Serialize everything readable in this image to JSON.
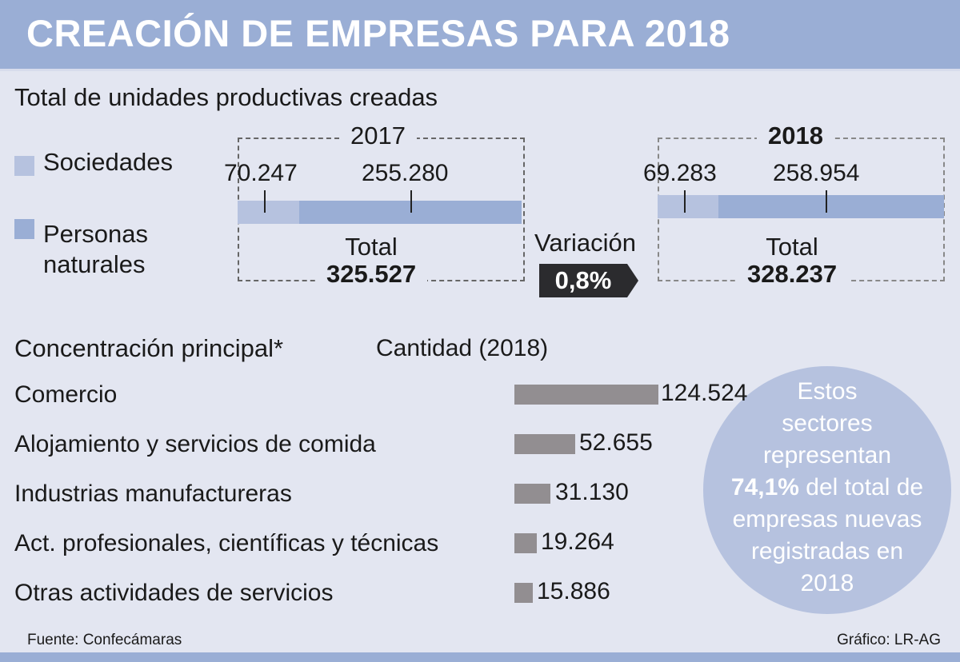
{
  "header": {
    "title": "CREACIÓN DE EMPRESAS PARA 2018"
  },
  "colors": {
    "header": "#9aaed5",
    "sociedades": "#b6c2df",
    "personas": "#9aaed5",
    "sector_bar": "#928e91",
    "badge": "#2b2b2e",
    "background": "#e3e6f1"
  },
  "section1": {
    "title": "Total de unidades productivas creadas",
    "legend": [
      {
        "label": "Sociedades",
        "color": "#b6c2df"
      },
      {
        "label_line1": "Personas",
        "label_line2": "naturales",
        "color": "#9aaed5"
      }
    ],
    "years": [
      {
        "year": "2017",
        "sociedades": "70.247",
        "personas": "255.280",
        "total_label": "Total",
        "total": "325.527"
      },
      {
        "year": "2018",
        "sociedades": "69.283",
        "personas": "258.954",
        "total_label": "Total",
        "total": "328.237"
      }
    ],
    "variation_label": "Variación",
    "variation_value": "0,8%"
  },
  "section2": {
    "title": "Concentración principal*",
    "subtitle": "Cantidad (2018)",
    "circle": {
      "line1": "Estos",
      "line2": "sectores",
      "line3": "representan",
      "highlight": "74,1%",
      "line4_rest": " del total de",
      "line5": "empresas nuevas",
      "line6": "registradas en",
      "line7": "2018"
    }
  },
  "footer": {
    "source": "Fuente: Confecámaras",
    "credit": "Gráfico: LR-AG"
  },
  "chart_data": [
    {
      "type": "bar",
      "orientation": "horizontal-stacked",
      "title": "Total de unidades productivas creadas",
      "categories": [
        "2017",
        "2018"
      ],
      "series": [
        {
          "name": "Sociedades",
          "values": [
            70247,
            69283
          ]
        },
        {
          "name": "Personas naturales",
          "values": [
            255280,
            258954
          ]
        }
      ],
      "totals": [
        325527,
        328237
      ],
      "annotations": [
        "Variación 0,8%"
      ]
    },
    {
      "type": "bar",
      "orientation": "horizontal",
      "title": "Concentración principal*",
      "subtitle": "Cantidad (2018)",
      "categories": [
        "Comercio",
        "Alojamiento y servicios de comida",
        "Industrias manufactureras",
        "Act. profesionales, científicas y técnicas",
        "Otras actividades de servicios"
      ],
      "values": [
        124524,
        52655,
        31130,
        19264,
        15886
      ],
      "value_labels": [
        "124.524",
        "52.655",
        "31.130",
        "19.264",
        "15.886"
      ],
      "annotations": [
        "Estos sectores representan 74,1% del total de empresas nuevas registradas en 2018"
      ]
    }
  ]
}
